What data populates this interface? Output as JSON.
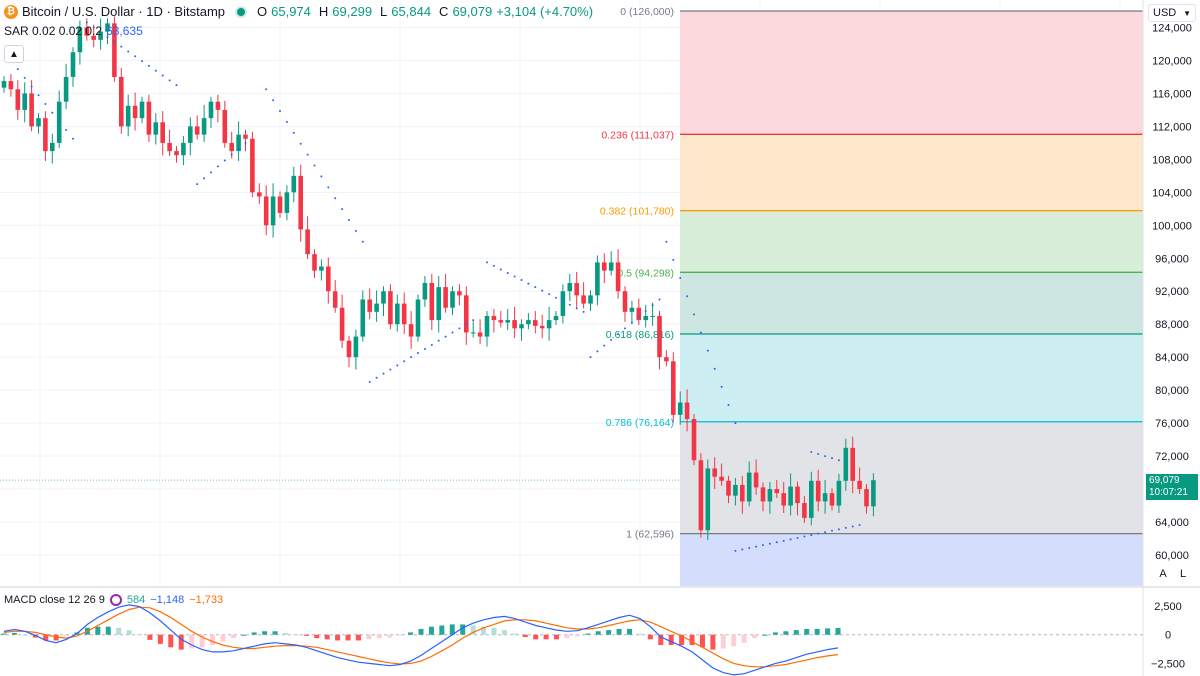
{
  "header": {
    "symbol_title": "Bitcoin / U.S. Dollar · 1D · Bitstamp",
    "open_label": "O",
    "open_value": "65,974",
    "high_label": "H",
    "high_value": "69,299",
    "low_label": "L",
    "low_value": "65,844",
    "close_label": "C",
    "close_value": "69,079",
    "change": "+3,104 (+4.70%)",
    "currency_button": "USD"
  },
  "indicators": {
    "sar_label": "SAR 0.02 0.02 0.2",
    "sar_value": "63,635",
    "macd_label": "MACD close 12 26 9",
    "macd_hist_value": "584",
    "macd_line_value": "−1,148",
    "macd_signal_value": "−1,733"
  },
  "price_tag": {
    "price": "69,079",
    "countdown": "10:07:21"
  },
  "scale_buttons": {
    "auto": "A",
    "log": "L"
  },
  "colors": {
    "up": "#089981",
    "down": "#f23645",
    "sar": "#2962ff",
    "macd_line": "#2962ff",
    "signal_line": "#ff6d00",
    "hist_up_strong": "#26a69a",
    "hist_up_weak": "#b2dfdb",
    "hist_down_strong": "#ff5252",
    "hist_down_weak": "#ffcdd2"
  },
  "chart_data": [
    {
      "type": "candlestick",
      "title": "Bitcoin / U.S. Dollar · 1D · Bitstamp",
      "ylim": [
        58000,
        128000
      ],
      "y_ticks": [
        "124,000",
        "120,000",
        "116,000",
        "112,000",
        "108,000",
        "104,000",
        "100,000",
        "96,000",
        "92,000",
        "88,000",
        "84,000",
        "80,000",
        "76,000",
        "72,000",
        "68,000",
        "64,000",
        "60,000"
      ],
      "closes": [
        117500,
        116500,
        114000,
        116000,
        112000,
        113000,
        109000,
        110000,
        115000,
        118000,
        121000,
        124000,
        123000,
        122500,
        123500,
        124500,
        118000,
        112000,
        114500,
        113000,
        115000,
        111000,
        112500,
        110000,
        109000,
        108500,
        110000,
        112000,
        111000,
        113000,
        115000,
        114000,
        110000,
        109000,
        111000,
        110500,
        104000,
        103500,
        100000,
        103500,
        101500,
        104000,
        106000,
        99500,
        96500,
        94500,
        95000,
        92000,
        90000,
        86000,
        84000,
        86500,
        91000,
        89500,
        90500,
        92000,
        88000,
        90500,
        88000,
        86500,
        91000,
        93000,
        88500,
        92500,
        90000,
        92000,
        91500,
        87000,
        87000,
        86500,
        89000,
        88500,
        88200,
        88500,
        87500,
        88000,
        88500,
        87800,
        87500,
        88500,
        89000,
        92000,
        93000,
        91500,
        90500,
        91500,
        95500,
        94500,
        95500,
        92000,
        89500,
        90000,
        88500,
        89000,
        89000,
        84000,
        83500,
        77000,
        78500,
        76500,
        71500,
        63000,
        70500,
        69500,
        69000,
        67200,
        68500,
        66500,
        70000,
        68200,
        66500,
        68000,
        67500,
        66000,
        68300,
        66300,
        64500,
        69000,
        66500,
        67500,
        66000,
        69000,
        73000,
        69000,
        68000,
        65900,
        69079
      ],
      "sar_points": [
        {
          "from": 1,
          "to": 10,
          "start": 120000,
          "end": 110500
        },
        {
          "from": 12,
          "to": 25,
          "start": 124600,
          "end": 117000
        },
        {
          "from": 28,
          "to": 35,
          "start": 105000,
          "end": 110000
        },
        {
          "from": 38,
          "to": 52,
          "start": 116500,
          "end": 98000
        },
        {
          "from": 53,
          "to": 68,
          "start": 81000,
          "end": 88500
        },
        {
          "from": 70,
          "to": 84,
          "start": 95500,
          "end": 89500
        },
        {
          "from": 85,
          "to": 95,
          "start": 84000,
          "end": 91000
        },
        {
          "from": 96,
          "to": 106,
          "start": 98000,
          "end": 76000
        },
        {
          "from": 106,
          "to": 124,
          "start": 60500,
          "end": 63635
        },
        {
          "from": 117,
          "to": 121,
          "start": 72500,
          "end": 71500
        }
      ]
    },
    {
      "type": "fibonacci_retracement",
      "levels": [
        {
          "ratio": "0",
          "value": 126000,
          "label": "0 (126,000)",
          "color": "#787b86",
          "fill": null
        },
        {
          "ratio": "0.236",
          "value": 111037,
          "label": "0.236 (111,037)",
          "color": "#f23645",
          "fill": "#fbd9dd"
        },
        {
          "ratio": "0.382",
          "value": 101780,
          "label": "0.382 (101,780)",
          "color": "#ff9800",
          "fill": "#fde8cb"
        },
        {
          "ratio": "0.5",
          "value": 94298,
          "label": "0.5 (94,298)",
          "color": "#4caf50",
          "fill": "#d9eed9"
        },
        {
          "ratio": "0.618",
          "value": 86816,
          "label": "0.618 (86,816)",
          "color": "#089981",
          "fill": "#cde6e2"
        },
        {
          "ratio": "0.786",
          "value": 76164,
          "label": "0.786 (76,164)",
          "color": "#00bcd4",
          "fill": "#cdeff4"
        },
        {
          "ratio": "1",
          "value": 62596,
          "label": "1 (62,596)",
          "color": "#787b86",
          "fill": "#e2e3e6"
        },
        {
          "ratio": "below",
          "value": null,
          "label": "",
          "color": null,
          "fill": "#d4ddfc"
        }
      ]
    },
    {
      "type": "macd",
      "ylim": [
        -3600,
        3200
      ],
      "y_ticks": [
        "2,500",
        "0",
        "−2,500"
      ],
      "macd_line": [
        300,
        450,
        300,
        -50,
        -500,
        -700,
        -400,
        100,
        900,
        1500,
        2000,
        2400,
        2600,
        2450,
        1900,
        1200,
        400,
        -400,
        -900,
        -1300,
        -1500,
        -1500,
        -1400,
        -1200,
        -1000,
        -800,
        -700,
        -800,
        -900,
        -1100,
        -1400,
        -1700,
        -2000,
        -2200,
        -2400,
        -2500,
        -2600,
        -2700,
        -2600,
        -2300,
        -1800,
        -1200,
        -600,
        0,
        600,
        1000,
        1300,
        1500,
        1600,
        1400,
        1100,
        800,
        600,
        400,
        300,
        350,
        600,
        900,
        1200,
        1500,
        1700,
        1400,
        700,
        -200,
        -600,
        -1000,
        -1500,
        -2200,
        -2900,
        -3300,
        -3500,
        -3400,
        -3100,
        -2800,
        -2500,
        -2300,
        -2000,
        -1700,
        -1500,
        -1300,
        -1148
      ],
      "signal_line": [
        200,
        300,
        300,
        200,
        0,
        -200,
        -300,
        -100,
        300,
        800,
        1300,
        1800,
        2200,
        2400,
        2350,
        2000,
        1500,
        900,
        300,
        -200,
        -600,
        -900,
        -1100,
        -1200,
        -1200,
        -1100,
        -1000,
        -950,
        -950,
        -1000,
        -1100,
        -1300,
        -1500,
        -1700,
        -1900,
        -2100,
        -2300,
        -2450,
        -2550,
        -2500,
        -2300,
        -1900,
        -1400,
        -900,
        -300,
        200,
        600,
        900,
        1200,
        1300,
        1300,
        1200,
        1000,
        800,
        600,
        500,
        500,
        600,
        800,
        1000,
        1200,
        1300,
        1100,
        700,
        300,
        -100,
        -600,
        -1100,
        -1600,
        -2100,
        -2500,
        -2700,
        -2800,
        -2800,
        -2700,
        -2600,
        -2400,
        -2200,
        -2000,
        -1850,
        -1733
      ],
      "histogram": [
        100,
        150,
        0,
        -250,
        -500,
        -500,
        -100,
        200,
        600,
        700,
        700,
        600,
        400,
        50,
        -450,
        -800,
        -1100,
        -1300,
        -1200,
        -1100,
        -900,
        -600,
        -300,
        0,
        200,
        300,
        300,
        150,
        50,
        -100,
        -300,
        -400,
        -500,
        -500,
        -500,
        -400,
        -300,
        -250,
        -50,
        200,
        500,
        700,
        800,
        900,
        900,
        800,
        700,
        600,
        400,
        100,
        -200,
        -400,
        -400,
        -400,
        -300,
        -150,
        100,
        300,
        400,
        500,
        500,
        100,
        -400,
        -900,
        -900,
        -900,
        -900,
        -1100,
        -1300,
        -1200,
        -1000,
        -700,
        -300,
        0,
        200,
        300,
        400,
        500,
        500,
        550,
        584
      ]
    }
  ]
}
